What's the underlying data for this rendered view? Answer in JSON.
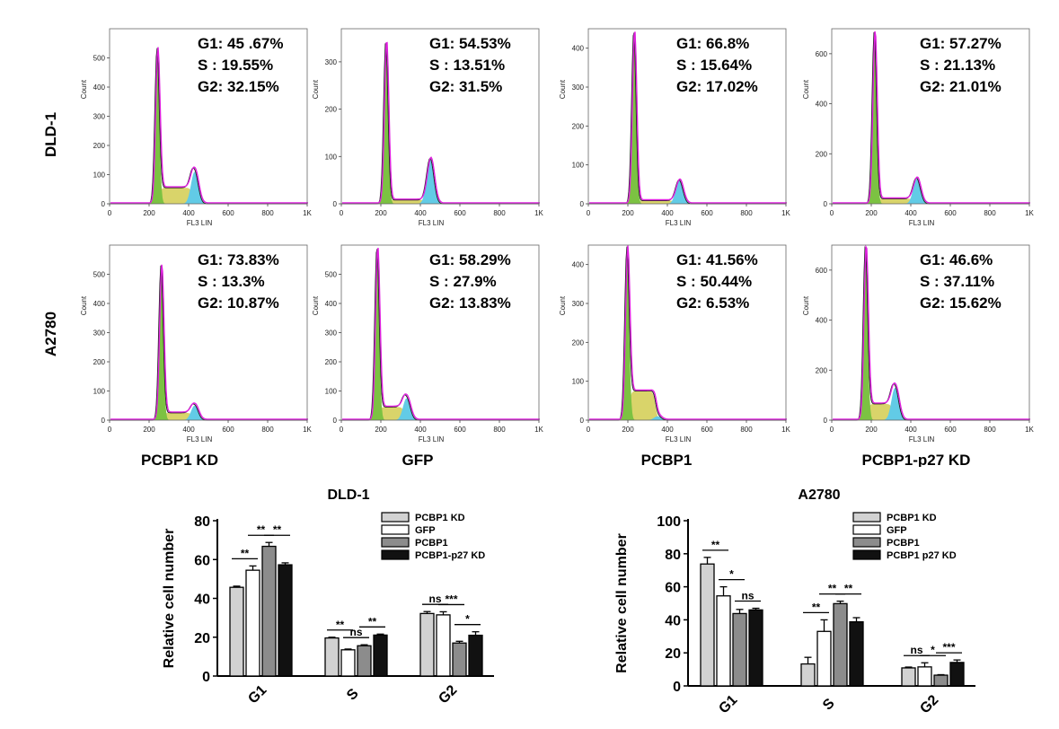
{
  "row_labels": [
    "DLD-1",
    "A2780"
  ],
  "col_labels": [
    "PCBP1 KD",
    "GFP",
    "PCBP1",
    "PCBP1-p27 KD"
  ],
  "hist_axis": {
    "xlabel": "FL3 LIN",
    "ylabel": "Count",
    "xticks": [
      "0",
      "200",
      "400",
      "600",
      "800",
      "1K"
    ]
  },
  "colors": {
    "g1_fill": "#7cc242",
    "s_fill": "#d9d46a",
    "g2_fill": "#62cbe6",
    "fit_line": "#e020e0",
    "raw_line": "#222222",
    "bar_light": "#d2d2d2",
    "bar_white": "#ffffff",
    "bar_gray": "#8c8c8c",
    "bar_black": "#111111"
  },
  "histograms": [
    {
      "row": 0,
      "col": 0,
      "ymax": 600,
      "yticks": [
        0,
        100,
        200,
        300,
        400,
        500
      ],
      "g1": "G1: 45 .67%",
      "s": "S  : 19.55%",
      "g2": "G2: 32.15%",
      "peaks": {
        "g1_pos": 240,
        "g1_height": 530,
        "g2_pos": 430,
        "g2_height": 110,
        "s_level": 55
      }
    },
    {
      "row": 0,
      "col": 1,
      "ymax": 370,
      "yticks": [
        0,
        100,
        200,
        300
      ],
      "g1": "G1: 54.53%",
      "s": "S  : 13.51%",
      "g2": "G2: 31.5%",
      "peaks": {
        "g1_pos": 225,
        "g1_height": 345,
        "g2_pos": 450,
        "g2_height": 95,
        "s_level": 8
      }
    },
    {
      "row": 0,
      "col": 2,
      "ymax": 450,
      "yticks": [
        0,
        100,
        200,
        300,
        400
      ],
      "g1": "G1: 66.8%",
      "s": "S  : 15.64%",
      "g2": "G2: 17.02%",
      "peaks": {
        "g1_pos": 230,
        "g1_height": 445,
        "g2_pos": 460,
        "g2_height": 60,
        "s_level": 8
      }
    },
    {
      "row": 0,
      "col": 3,
      "ymax": 700,
      "yticks": [
        0,
        200,
        400,
        600
      ],
      "g1": "G1: 57.27%",
      "s": "S  : 21.13%",
      "g2": "G2: 21.01%",
      "peaks": {
        "g1_pos": 215,
        "g1_height": 690,
        "g2_pos": 430,
        "g2_height": 100,
        "s_level": 20
      }
    },
    {
      "row": 1,
      "col": 0,
      "ymax": 600,
      "yticks": [
        0,
        100,
        200,
        300,
        400,
        500
      ],
      "g1": "G1: 73.83%",
      "s": "S  : 13.3%",
      "g2": "G2: 10.87%",
      "peaks": {
        "g1_pos": 260,
        "g1_height": 530,
        "g2_pos": 430,
        "g2_height": 50,
        "s_level": 25
      }
    },
    {
      "row": 1,
      "col": 1,
      "ymax": 600,
      "yticks": [
        0,
        100,
        200,
        300,
        400,
        500
      ],
      "g1": "G1: 58.29%",
      "s": "S  : 27.9%",
      "g2": "G2: 13.83%",
      "peaks": {
        "g1_pos": 180,
        "g1_height": 590,
        "g2_pos": 330,
        "g2_height": 75,
        "s_level": 45
      }
    },
    {
      "row": 1,
      "col": 2,
      "ymax": 450,
      "yticks": [
        0,
        100,
        200,
        300,
        400
      ],
      "g1": "G1: 41.56%",
      "s": "S  : 50.44%",
      "g2": "G2: 6.53%",
      "peaks": {
        "g1_pos": 195,
        "g1_height": 440,
        "g2_pos": 350,
        "g2_height": 10,
        "s_level": 75
      }
    },
    {
      "row": 1,
      "col": 3,
      "ymax": 700,
      "yticks": [
        0,
        200,
        400,
        600
      ],
      "g1": "G1: 46.6%",
      "s": "S  : 37.11%",
      "g2": "G2: 15.62%",
      "peaks": {
        "g1_pos": 170,
        "g1_height": 695,
        "g2_pos": 320,
        "g2_height": 130,
        "s_level": 65
      }
    }
  ],
  "chart_data": [
    {
      "type": "bar",
      "title": "DLD-1",
      "ylabel": "Relative cell number",
      "categories": [
        "G1",
        "S",
        "G2"
      ],
      "ylim": [
        0,
        80
      ],
      "yticks": [
        0,
        20,
        40,
        60,
        80
      ],
      "series": [
        {
          "name": "PCBP1 KD",
          "values": [
            45.7,
            19.6,
            32.2
          ],
          "errors": [
            0.6,
            0.4,
            1.0
          ]
        },
        {
          "name": "GFP",
          "values": [
            54.5,
            13.5,
            31.5
          ],
          "errors": [
            2.2,
            0.4,
            1.6
          ]
        },
        {
          "name": "PCBP1",
          "values": [
            66.8,
            15.6,
            17.0
          ],
          "errors": [
            2.0,
            0.5,
            0.9
          ]
        },
        {
          "name": "PCBP1-p27 KD",
          "values": [
            57.3,
            21.1,
            21.0
          ],
          "errors": [
            1.0,
            0.5,
            1.8
          ]
        }
      ],
      "significance": [
        {
          "category": "G1",
          "from": 0,
          "to": 1,
          "label": "**"
        },
        {
          "category": "G1",
          "from": 1,
          "to": 2,
          "label": "**"
        },
        {
          "category": "G1",
          "from": 2,
          "to": 3,
          "label": "**"
        },
        {
          "category": "S",
          "from": 0,
          "to": 1,
          "label": "**"
        },
        {
          "category": "S",
          "from": 1,
          "to": 2,
          "label": "ns"
        },
        {
          "category": "S",
          "from": 2,
          "to": 3,
          "label": "**"
        },
        {
          "category": "G2",
          "from": 0,
          "to": 1,
          "label": "ns"
        },
        {
          "category": "G2",
          "from": 1,
          "to": 2,
          "label": "***"
        },
        {
          "category": "G2",
          "from": 2,
          "to": 3,
          "label": "*"
        }
      ],
      "legend_position": "top-right"
    },
    {
      "type": "bar",
      "title": "A2780",
      "ylabel": "Relative cell number",
      "categories": [
        "G1",
        "S",
        "G2"
      ],
      "ylim": [
        0,
        100
      ],
      "yticks": [
        0,
        20,
        40,
        60,
        80,
        100
      ],
      "series": [
        {
          "name": "PCBP1 KD",
          "values": [
            73.8,
            13.3,
            10.9
          ],
          "errors": [
            4.0,
            4.0,
            0.5
          ]
        },
        {
          "name": "GFP",
          "values": [
            54.5,
            33.0,
            11.5
          ],
          "errors": [
            5.5,
            7.0,
            2.5
          ]
        },
        {
          "name": "PCBP1",
          "values": [
            43.8,
            49.8,
            6.5
          ],
          "errors": [
            2.5,
            1.5,
            0.3
          ]
        },
        {
          "name": "PCBP1 p27 KD",
          "values": [
            46.0,
            38.8,
            14.2
          ],
          "errors": [
            1.0,
            2.5,
            1.5
          ]
        }
      ],
      "significance": [
        {
          "category": "G1",
          "from": 0,
          "to": 1,
          "label": "**"
        },
        {
          "category": "G1",
          "from": 1,
          "to": 2,
          "label": "*"
        },
        {
          "category": "G1",
          "from": 2,
          "to": 3,
          "label": "ns"
        },
        {
          "category": "S",
          "from": 0,
          "to": 1,
          "label": "**"
        },
        {
          "category": "S",
          "from": 1,
          "to": 2,
          "label": "**"
        },
        {
          "category": "S",
          "from": 2,
          "to": 3,
          "label": "**"
        },
        {
          "category": "G2",
          "from": 0,
          "to": 1,
          "label": "ns"
        },
        {
          "category": "G2",
          "from": 1,
          "to": 2,
          "label": "*"
        },
        {
          "category": "G2",
          "from": 2,
          "to": 3,
          "label": "***"
        }
      ],
      "legend_position": "top-right"
    }
  ]
}
